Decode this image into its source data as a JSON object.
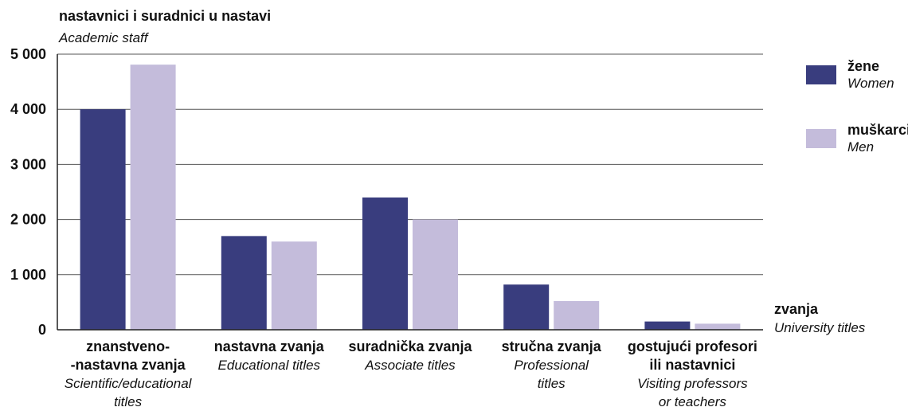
{
  "chart_data": {
    "type": "bar",
    "ylabel": "nastavnici i suradnici u nastavi",
    "ylabel_en": "Academic staff",
    "xlabel": "zvanja",
    "xlabel_en": "University titles",
    "ylim": [
      0,
      5000
    ],
    "yticks": [
      0,
      1000,
      2000,
      3000,
      4000,
      5000
    ],
    "ytick_labels": [
      "0",
      "1 000",
      "2 000",
      "3 000",
      "4 000",
      "5 000"
    ],
    "grid": true,
    "legend_position": "right",
    "categories": [
      {
        "name": "znanstveno-\n-nastavna zvanja",
        "name_en": "Scientific/educational\ntitles"
      },
      {
        "name": "nastavna zvanja",
        "name_en": "Educational titles"
      },
      {
        "name": "suradnička zvanja",
        "name_en": "Associate titles"
      },
      {
        "name": "stručna zvanja",
        "name_en": "Professional\ntitles"
      },
      {
        "name": "gostujući profesori\nili nastavnici",
        "name_en": "Visiting professors\nor teachers"
      }
    ],
    "series": [
      {
        "name": "žene",
        "name_en": "Women",
        "color": "#393d7e",
        "values": [
          4000,
          1700,
          2400,
          820,
          150
        ]
      },
      {
        "name": "muškarci",
        "name_en": "Men",
        "color": "#c4bcdb",
        "values": [
          4810,
          1600,
          2000,
          520,
          110
        ]
      }
    ]
  }
}
